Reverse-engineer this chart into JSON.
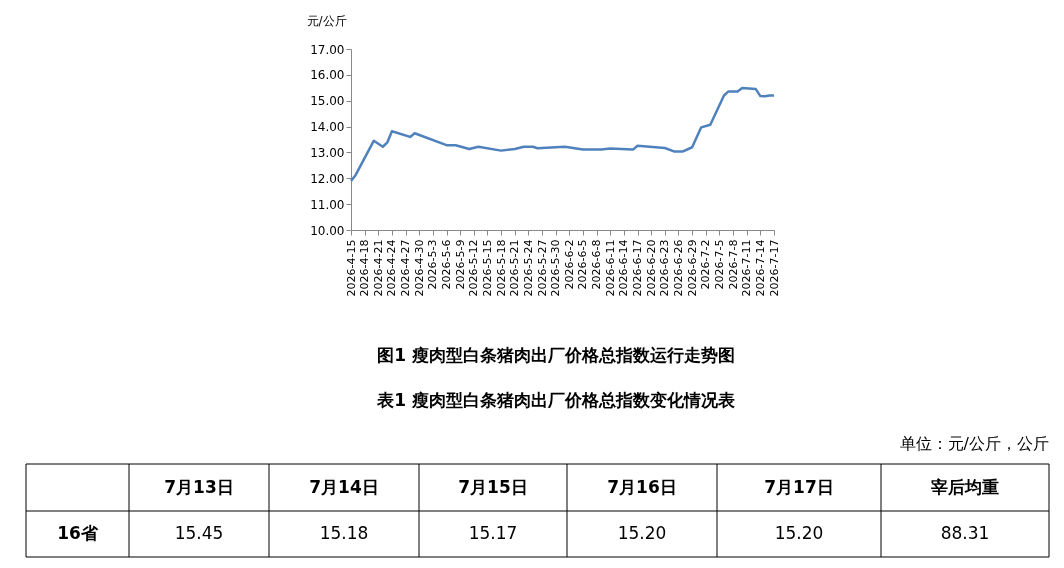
{
  "chart_data": {
    "type": "line",
    "title": "图1 瘦肉型白条猪肉出厂价格总指数运行走势图",
    "ylabel": "元/公斤",
    "x": [
      "2026-04-15",
      "2026-04-16",
      "2026-04-20",
      "2026-04-22",
      "2026-04-23",
      "2026-04-24",
      "2026-04-28",
      "2026-04-29",
      "2026-05-06",
      "2026-05-08",
      "2026-05-11",
      "2026-05-13",
      "2026-05-18",
      "2026-05-21",
      "2026-05-23",
      "2026-05-25",
      "2026-05-26",
      "2026-06-01",
      "2026-06-05",
      "2026-06-09",
      "2026-06-11",
      "2026-06-16",
      "2026-06-17",
      "2026-06-23",
      "2026-06-25",
      "2026-06-27",
      "2026-06-29",
      "2026-07-01",
      "2026-07-03",
      "2026-07-06",
      "2026-07-07",
      "2026-07-09",
      "2026-07-10",
      "2026-07-13",
      "2026-07-14",
      "2026-07-15",
      "2026-07-16",
      "2026-07-17"
    ],
    "series": [
      {
        "color": "#4f81bd",
        "values": [
          11.9,
          12.12,
          13.45,
          13.22,
          13.39,
          13.82,
          13.6,
          13.74,
          13.28,
          13.28,
          13.13,
          13.22,
          13.07,
          13.13,
          13.22,
          13.22,
          13.16,
          13.22,
          13.11,
          13.11,
          13.15,
          13.11,
          13.26,
          13.17,
          13.04,
          13.04,
          13.2,
          13.97,
          14.07,
          15.2,
          15.36,
          15.36,
          15.49,
          15.45,
          15.18,
          15.17,
          15.2,
          15.2
        ]
      }
    ],
    "ylim": [
      10,
      17
    ],
    "yticks": [
      {
        "value": 10,
        "label": "10.00"
      },
      {
        "value": 11,
        "label": "11.00"
      },
      {
        "value": 12,
        "label": "12.00"
      },
      {
        "value": 13,
        "label": "13.00"
      },
      {
        "value": 14,
        "label": "14.00"
      },
      {
        "value": 15,
        "label": "15.00"
      },
      {
        "value": 16,
        "label": "16.00"
      },
      {
        "value": 17,
        "label": "17.00"
      }
    ],
    "xlim": [
      "2026-04-15",
      "2026-07-17"
    ],
    "xticks": [
      {
        "value": "2026-04-15",
        "label": "2026-4-15"
      },
      {
        "value": "2026-04-18",
        "label": "2026-4-18"
      },
      {
        "value": "2026-04-21",
        "label": "2026-4-21"
      },
      {
        "value": "2026-04-24",
        "label": "2026-4-24"
      },
      {
        "value": "2026-04-27",
        "label": "2026-4-27"
      },
      {
        "value": "2026-04-30",
        "label": "2026-4-30"
      },
      {
        "value": "2026-05-03",
        "label": "2026-5-3"
      },
      {
        "value": "2026-05-06",
        "label": "2026-5-6"
      },
      {
        "value": "2026-05-09",
        "label": "2026-5-9"
      },
      {
        "value": "2026-05-12",
        "label": "2026-5-12"
      },
      {
        "value": "2026-05-15",
        "label": "2026-5-15"
      },
      {
        "value": "2026-05-18",
        "label": "2026-5-18"
      },
      {
        "value": "2026-05-21",
        "label": "2026-5-21"
      },
      {
        "value": "2026-05-24",
        "label": "2026-5-24"
      },
      {
        "value": "2026-05-27",
        "label": "2026-5-27"
      },
      {
        "value": "2026-05-30",
        "label": "2026-5-30"
      },
      {
        "value": "2026-06-02",
        "label": "2026-6-2"
      },
      {
        "value": "2026-06-05",
        "label": "2026-6-5"
      },
      {
        "value": "2026-06-08",
        "label": "2026-6-8"
      },
      {
        "value": "2026-06-11",
        "label": "2026-6-11"
      },
      {
        "value": "2026-06-14",
        "label": "2026-6-14"
      },
      {
        "value": "2026-06-17",
        "label": "2026-6-17"
      },
      {
        "value": "2026-06-20",
        "label": "2026-6-20"
      },
      {
        "value": "2026-06-23",
        "label": "2026-6-23"
      },
      {
        "value": "2026-06-26",
        "label": "2026-6-26"
      },
      {
        "value": "2026-06-29",
        "label": "2026-6-29"
      },
      {
        "value": "2026-07-02",
        "label": "2026-7-2"
      },
      {
        "value": "2026-07-05",
        "label": "2026-7-5"
      },
      {
        "value": "2026-07-08",
        "label": "2026-7-8"
      },
      {
        "value": "2026-07-11",
        "label": "2026-7-11"
      },
      {
        "value": "2026-07-14",
        "label": "2026-7-14"
      },
      {
        "value": "2026-07-17",
        "label": "2026-7-17"
      }
    ],
    "grid": false,
    "marker": "none",
    "line_style": "solid",
    "annotations": [
      "表1 瘦肉型白条猪肉出厂价格总指数变化情况表",
      "单位：元/公斤，公斤",
      "7月13日",
      "7月14日",
      "7月15日",
      "7月16日",
      "7月17日",
      "宰后均重",
      "16省",
      "15.45",
      "15.18",
      "15.17",
      "15.20",
      "15.20",
      "88.31"
    ]
  }
}
